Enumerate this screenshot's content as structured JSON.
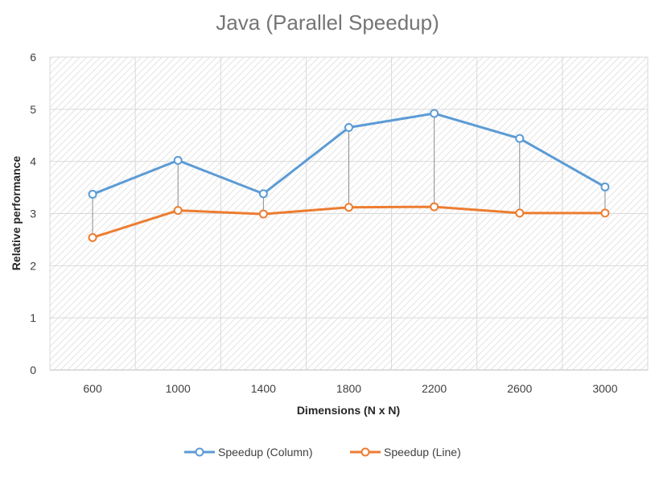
{
  "chart_data": {
    "type": "line",
    "title": "Java (Parallel Speedup)",
    "xlabel": "Dimensions (N x N)",
    "ylabel": "Relative performance",
    "categories": [
      "600",
      "1000",
      "1400",
      "1800",
      "2200",
      "2600",
      "3000"
    ],
    "ylim": [
      0,
      6
    ],
    "yticks": [
      0,
      1,
      2,
      3,
      4,
      5,
      6
    ],
    "grid": true,
    "drop_lines": true,
    "legend_position": "bottom",
    "series": [
      {
        "name": "Speedup (Column)",
        "color": "#5b9bd5",
        "values": [
          3.37,
          4.02,
          3.38,
          4.65,
          4.92,
          4.44,
          3.51
        ]
      },
      {
        "name": "Speedup (Line)",
        "color": "#ed7d31",
        "values": [
          2.54,
          3.06,
          2.99,
          3.12,
          3.13,
          3.01,
          3.01
        ]
      }
    ]
  }
}
